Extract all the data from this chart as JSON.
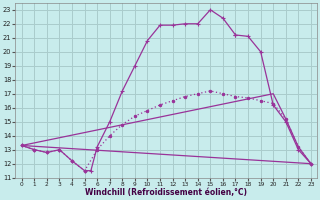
{
  "xlabel": "Windchill (Refroidissement éolien,°C)",
  "bg_color": "#c8ecec",
  "grid_color": "#aacccc",
  "line_color": "#993399",
  "xlim": [
    -0.5,
    23.5
  ],
  "ylim": [
    11,
    23.5
  ],
  "xticks": [
    0,
    1,
    2,
    3,
    4,
    5,
    6,
    7,
    8,
    9,
    10,
    11,
    12,
    13,
    14,
    15,
    16,
    17,
    18,
    19,
    20,
    21,
    22,
    23
  ],
  "yticks": [
    11,
    12,
    13,
    14,
    15,
    16,
    17,
    18,
    19,
    20,
    21,
    22,
    23
  ],
  "line1_x": [
    0,
    1,
    2,
    3,
    4,
    5,
    5.5,
    6,
    7,
    8,
    9,
    10,
    11,
    12,
    13,
    14,
    15,
    16,
    17,
    17,
    18,
    19,
    20,
    21,
    22,
    23
  ],
  "line1_y": [
    13.3,
    13.0,
    12.8,
    13.0,
    12.2,
    11.5,
    11.5,
    13.2,
    15.0,
    17.2,
    19.0,
    20.8,
    21.9,
    21.9,
    22.0,
    22.0,
    23.0,
    22.4,
    21.2,
    21.2,
    21.1,
    20.0,
    16.2,
    15.0,
    13.0,
    12.0
  ],
  "line2_x": [
    0,
    1,
    2,
    3,
    4,
    5,
    6,
    7,
    8,
    9,
    10,
    11,
    12,
    13,
    14,
    15,
    16,
    17,
    18,
    19,
    20,
    21,
    22,
    23
  ],
  "line2_y": [
    13.3,
    13.0,
    12.8,
    13.0,
    12.2,
    11.5,
    13.0,
    14.0,
    14.8,
    15.4,
    15.8,
    16.2,
    16.5,
    16.8,
    17.0,
    17.2,
    17.0,
    16.8,
    16.7,
    16.5,
    16.3,
    15.2,
    13.2,
    12.0
  ],
  "line3_x": [
    0,
    23
  ],
  "line3_y": [
    13.3,
    12.0
  ],
  "line4_x": [
    0,
    20,
    21,
    22,
    23
  ],
  "line4_y": [
    13.3,
    17.0,
    15.2,
    13.2,
    12.0
  ]
}
